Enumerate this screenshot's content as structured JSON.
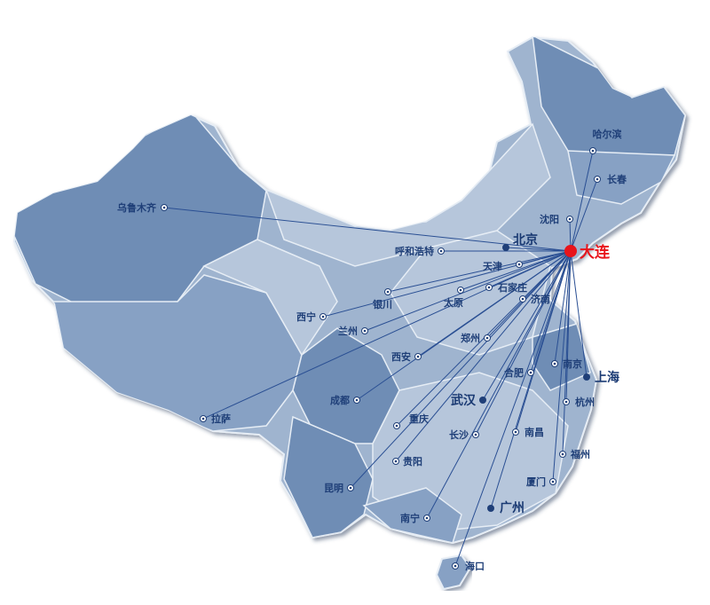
{
  "origin": {
    "name": "大连",
    "color": "#e8141b"
  },
  "route_color": "#2a4f93",
  "map_colors": {
    "land": "#9fb4cf",
    "dark": "#6f8db5",
    "mid": "#87a1c4",
    "light": "#b6c6db",
    "border": "#e6edf5"
  },
  "cities": [
    {
      "name": "乌鲁木齐",
      "major": false
    },
    {
      "name": "哈尔滨",
      "major": false
    },
    {
      "name": "长春",
      "major": false
    },
    {
      "name": "沈阳",
      "major": false
    },
    {
      "name": "北京",
      "major": true
    },
    {
      "name": "天津",
      "major": false
    },
    {
      "name": "呼和浩特",
      "major": false
    },
    {
      "name": "银川",
      "major": false
    },
    {
      "name": "太原",
      "major": false
    },
    {
      "name": "石家庄",
      "major": false
    },
    {
      "name": "济南",
      "major": false
    },
    {
      "name": "西宁",
      "major": false
    },
    {
      "name": "兰州",
      "major": false
    },
    {
      "name": "郑州",
      "major": false
    },
    {
      "name": "西安",
      "major": false
    },
    {
      "name": "南京",
      "major": false
    },
    {
      "name": "上海",
      "major": true
    },
    {
      "name": "合肥",
      "major": false
    },
    {
      "name": "武汉",
      "major": true
    },
    {
      "name": "成都",
      "major": false
    },
    {
      "name": "杭州",
      "major": false
    },
    {
      "name": "重庆",
      "major": false
    },
    {
      "name": "拉萨",
      "major": false
    },
    {
      "name": "长沙",
      "major": false
    },
    {
      "name": "南昌",
      "major": false
    },
    {
      "name": "福州",
      "major": false
    },
    {
      "name": "贵阳",
      "major": false
    },
    {
      "name": "昆明",
      "major": false
    },
    {
      "name": "厦门",
      "major": false
    },
    {
      "name": "广州",
      "major": true
    },
    {
      "name": "南宁",
      "major": false
    },
    {
      "name": "海口",
      "major": false
    }
  ]
}
